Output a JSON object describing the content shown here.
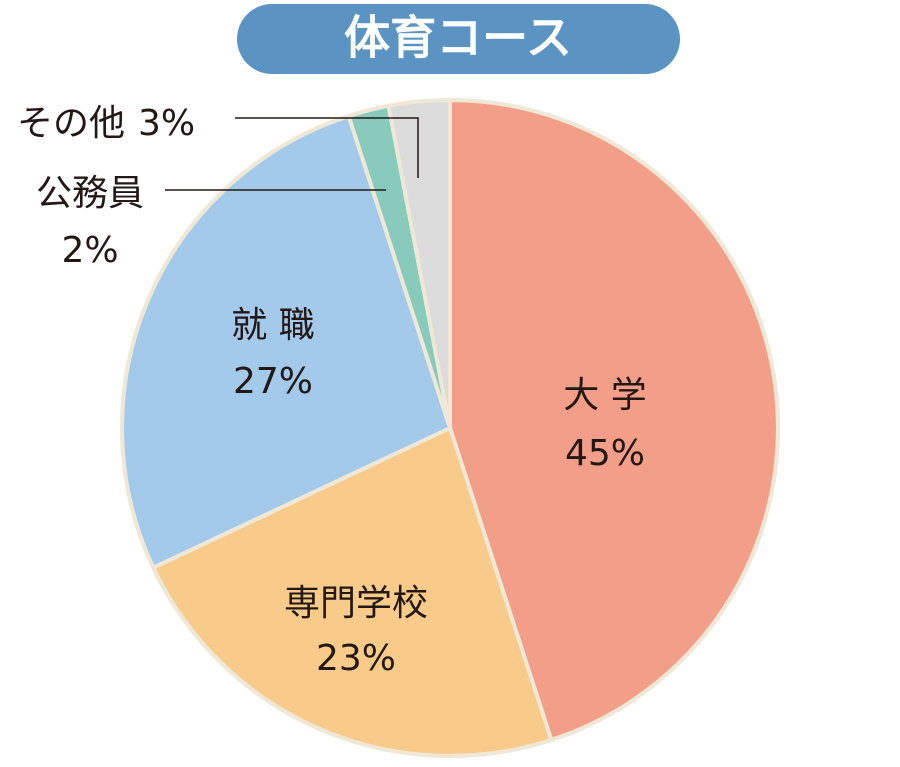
{
  "chart_data": {
    "type": "pie",
    "title": "体育コース",
    "categories": [
      "大 学",
      "専門学校",
      "就 職",
      "公務員",
      "その他"
    ],
    "values": [
      45,
      23,
      27,
      2,
      3
    ],
    "value_labels": [
      "45%",
      "23%",
      "27%",
      "2%",
      "3%"
    ],
    "colors": [
      "#f29e88",
      "#f8cb8a",
      "#a3c9eb",
      "#88cbbd",
      "#dcdcdc"
    ]
  }
}
